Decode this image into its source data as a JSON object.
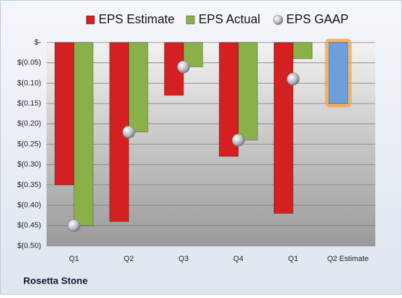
{
  "chart_data": {
    "type": "bar",
    "footer": "Rosetta Stone",
    "categories": [
      "Q1",
      "Q2",
      "Q3",
      "Q4",
      "Q1",
      "Q2 Estimate"
    ],
    "series": [
      {
        "name": "EPS Estimate",
        "color": "#d42020",
        "point_colors": [
          "#d42020",
          "#d42020",
          "#d42020",
          "#d42020",
          "#d42020",
          "#6f9fd8"
        ],
        "values": [
          -0.35,
          -0.44,
          -0.13,
          -0.28,
          -0.42,
          -0.15
        ]
      },
      {
        "name": "EPS Actual",
        "color": "#8ab04a",
        "values": [
          -0.45,
          -0.22,
          -0.06,
          -0.24,
          -0.04,
          null
        ]
      },
      {
        "name": "EPS GAAP",
        "color": "#b8bcc4",
        "marker": "sphere",
        "values": [
          -0.45,
          -0.22,
          -0.06,
          -0.24,
          -0.09,
          null
        ]
      }
    ],
    "highlight_color": "#f5a64a",
    "ylim": [
      -0.5,
      0
    ],
    "yticks": [
      {
        "value": 0,
        "label": "$-"
      },
      {
        "value": -0.05,
        "label": "$(0.05)"
      },
      {
        "value": -0.1,
        "label": "$(0.10)"
      },
      {
        "value": -0.15,
        "label": "$(0.15)"
      },
      {
        "value": -0.2,
        "label": "$(0.20)"
      },
      {
        "value": -0.25,
        "label": "$(0.25)"
      },
      {
        "value": -0.3,
        "label": "$(0.30)"
      },
      {
        "value": -0.35,
        "label": "$(0.35)"
      },
      {
        "value": -0.4,
        "label": "$(0.40)"
      },
      {
        "value": -0.45,
        "label": "$(0.45)"
      },
      {
        "value": -0.5,
        "label": "$(0.50)"
      }
    ],
    "grid": true,
    "legend": "top"
  }
}
